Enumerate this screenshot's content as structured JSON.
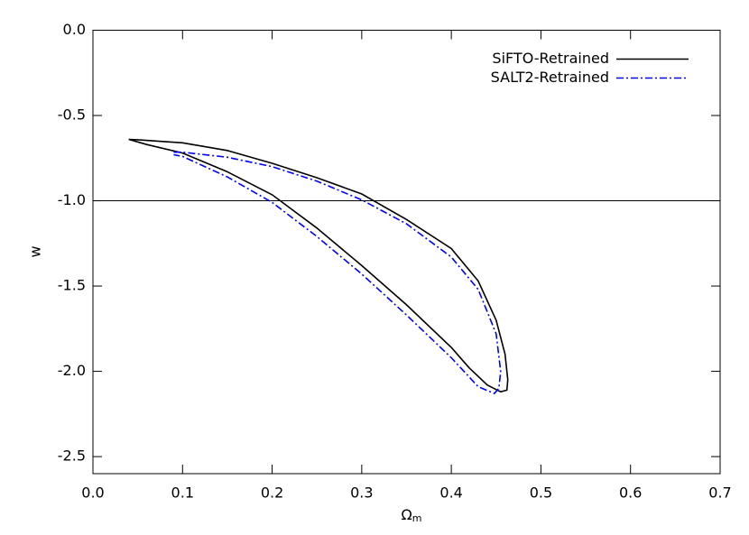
{
  "chart_data": {
    "type": "line",
    "x_label": {
      "symbol": "Ω",
      "subscript": "m"
    },
    "y_label": "w",
    "xlim": [
      0,
      0.7
    ],
    "ylim": [
      -2.6,
      0
    ],
    "xticks": [
      {
        "value": 0,
        "label": "0.0"
      },
      0.1,
      0.2,
      0.3,
      0.4,
      0.5,
      0.6,
      0.7
    ],
    "yticks": [
      {
        "value": -2.5,
        "label": "-2.5"
      },
      {
        "value": -2,
        "label": "-2.0"
      },
      -1.5,
      {
        "value": -1,
        "label": "-1.0"
      },
      -0.5,
      {
        "value": 0,
        "label": "0.0"
      }
    ],
    "hline": -1,
    "legend": "upper right",
    "series": [
      {
        "name": "SiFTO-Retrained",
        "color": "#000000",
        "dash": "solid",
        "x": [
          0.04,
          0.05,
          0.1,
          0.15,
          0.2,
          0.25,
          0.3,
          0.35,
          0.4,
          0.43,
          0.45,
          0.46,
          0.463,
          0.462,
          0.455,
          0.44,
          0.42,
          0.4,
          0.35,
          0.3,
          0.25,
          0.2,
          0.15,
          0.1,
          0.06,
          0.05,
          0.04
        ],
        "values": [
          -0.64,
          -0.642,
          -0.66,
          -0.705,
          -0.78,
          -0.865,
          -0.96,
          -1.11,
          -1.28,
          -1.47,
          -1.7,
          -1.9,
          -2.05,
          -2.11,
          -2.12,
          -2.08,
          -1.98,
          -1.86,
          -1.61,
          -1.38,
          -1.16,
          -0.965,
          -0.83,
          -0.72,
          -0.67,
          -0.655,
          -0.64
        ]
      },
      {
        "name": "SALT2-Retrained",
        "color": "#0000ff",
        "dash": "dashdot",
        "x": [
          0.09,
          0.1,
          0.15,
          0.2,
          0.25,
          0.3,
          0.35,
          0.4,
          0.43,
          0.45,
          0.455,
          0.453,
          0.448,
          0.43,
          0.4,
          0.35,
          0.3,
          0.25,
          0.2,
          0.15,
          0.1,
          0.09
        ],
        "values": [
          -0.715,
          -0.715,
          -0.745,
          -0.8,
          -0.885,
          -0.995,
          -1.135,
          -1.33,
          -1.52,
          -1.78,
          -2.0,
          -2.1,
          -2.13,
          -2.09,
          -1.92,
          -1.67,
          -1.43,
          -1.21,
          -1.01,
          -0.86,
          -0.74,
          -0.73
        ]
      }
    ]
  }
}
